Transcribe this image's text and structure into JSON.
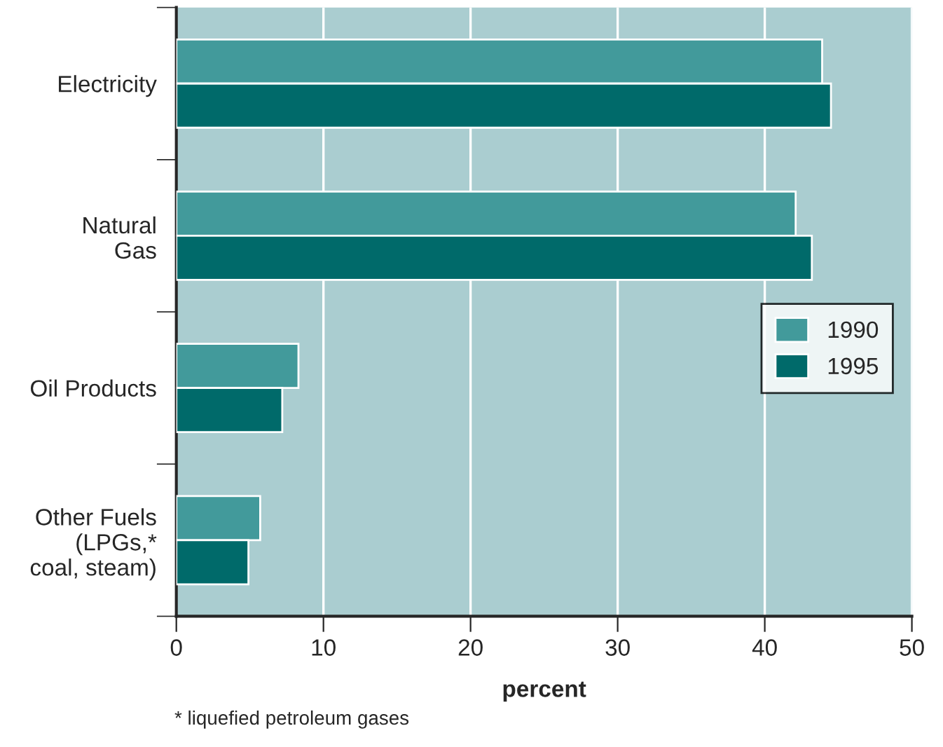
{
  "chart_data": {
    "type": "bar",
    "orientation": "horizontal",
    "xlabel": "percent",
    "categories": [
      "Electricity",
      "Natural\nGas",
      "Oil Products",
      "Other Fuels\n(LPGs,*\ncoal, steam)"
    ],
    "series": [
      {
        "name": "1990",
        "color": "#429a9b",
        "values": [
          43.9,
          42.1,
          8.3,
          5.7
        ]
      },
      {
        "name": "1995",
        "color": "#006a6a",
        "values": [
          44.5,
          43.2,
          7.2,
          4.9
        ]
      }
    ],
    "xlim": [
      0,
      50
    ],
    "xticks": [
      0,
      10,
      20,
      30,
      40,
      50
    ],
    "grid": "x",
    "legend": "right",
    "annotations": [
      "* liquefied petroleum gases"
    ]
  }
}
